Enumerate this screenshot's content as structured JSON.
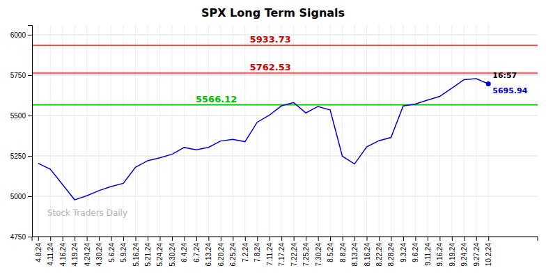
{
  "chart_data": {
    "type": "line",
    "title": "SPX Long Term Signals",
    "categories": [
      "4.8.24",
      "4.11.24",
      "4.16.24",
      "4.19.24",
      "4.24.24",
      "4.30.24",
      "5.6.24",
      "5.9.24",
      "5.16.24",
      "5.21.24",
      "5.24.24",
      "5.30.24",
      "6.4.24",
      "6.7.24",
      "6.13.24",
      "6.20.24",
      "6.25.24",
      "7.2.24",
      "7.8.24",
      "7.11.24",
      "7.17.24",
      "7.22.24",
      "7.25.24",
      "7.30.24",
      "8.5.24",
      "8.8.24",
      "8.13.24",
      "8.16.24",
      "8.22.24",
      "8.28.24",
      "9.3.24",
      "9.6.24",
      "9.11.24",
      "9.16.24",
      "9.19.24",
      "9.24.24",
      "9.27.24",
      "10.2.24"
    ],
    "values": [
      5204,
      5168,
      5073,
      4978,
      5003,
      5035,
      5060,
      5080,
      5180,
      5220,
      5238,
      5260,
      5302,
      5288,
      5303,
      5342,
      5352,
      5338,
      5458,
      5502,
      5560,
      5580,
      5516,
      5556,
      5534,
      5248,
      5200,
      5306,
      5344,
      5364,
      5559,
      5571,
      5596,
      5618,
      5669,
      5722,
      5728,
      5696
    ],
    "color": "#0000cc",
    "hlines": [
      {
        "value": 5933.73,
        "label": "5933.73",
        "color": "#cc0000",
        "band_half": 8
      },
      {
        "value": 5762.53,
        "label": "5762.53",
        "color": "#cc0000",
        "band_half": 8
      },
      {
        "value": 5566.12,
        "label": "5566.12",
        "color": "#00bb00",
        "band_half": 0
      }
    ],
    "last_time": "16:57",
    "last_price": 5695.94,
    "watermark": "Stock Traders Daily",
    "ylim": [
      4750,
      6060
    ],
    "yticks": [
      4750,
      5000,
      5250,
      5500,
      5750,
      6000
    ],
    "grid": true
  }
}
